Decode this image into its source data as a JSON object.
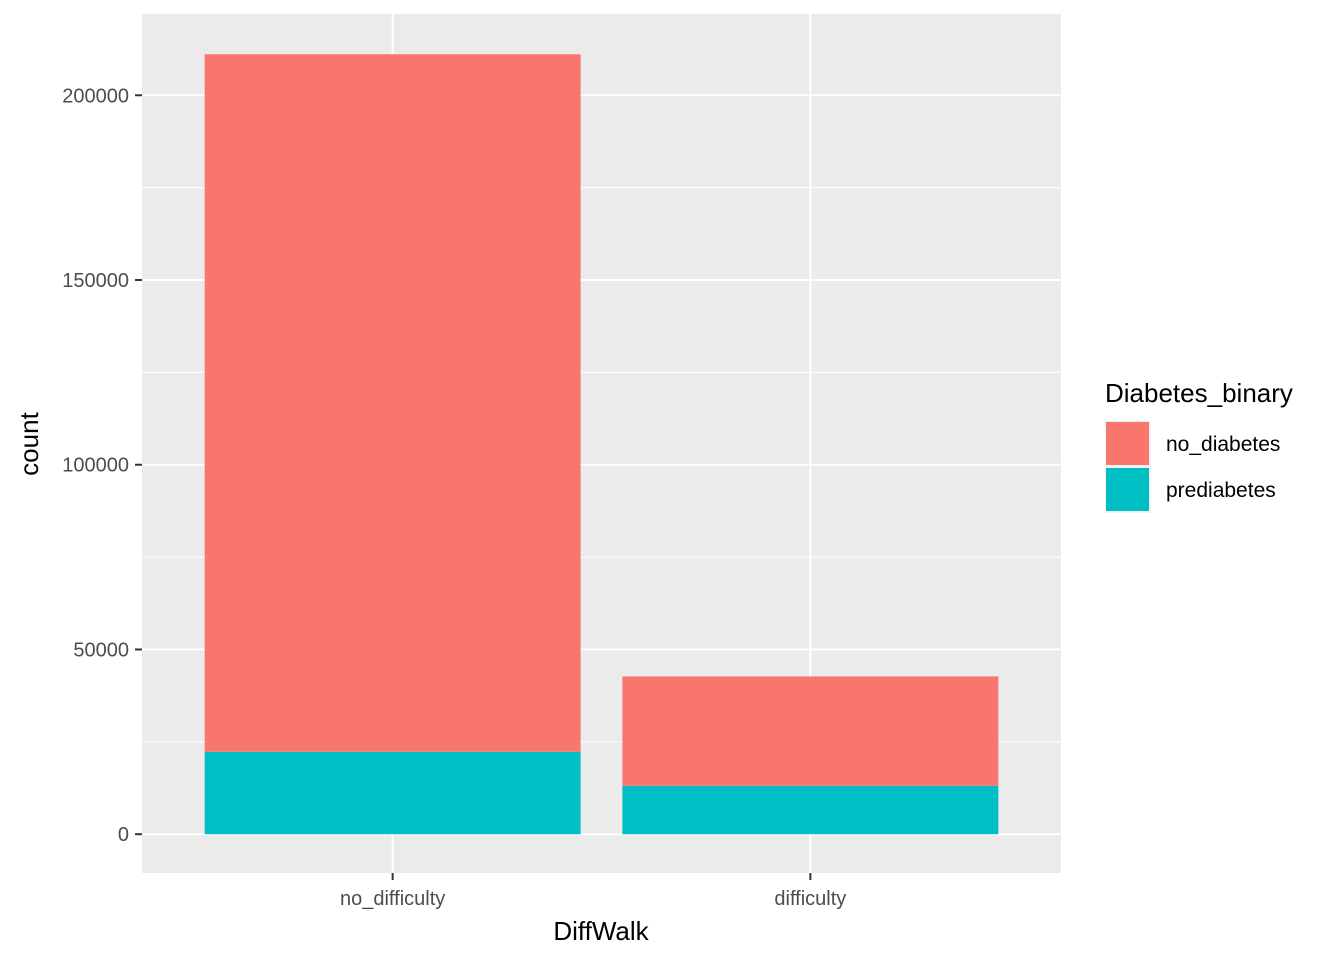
{
  "chart_data": {
    "type": "bar",
    "stacked": true,
    "categories": [
      "no_difficulty",
      "difficulty"
    ],
    "series": [
      {
        "name": "no_diabetes",
        "color": "#F8766D",
        "values": [
          188800,
          29600
        ]
      },
      {
        "name": "prediabetes",
        "color": "#00BFC4",
        "values": [
          22300,
          13100
        ]
      }
    ],
    "xlabel": "DiffWalk",
    "ylabel": "count",
    "ylim": [
      -10500,
      222000
    ],
    "yticks": [
      0,
      50000,
      100000,
      150000,
      200000
    ],
    "ytick_labels": [
      "0",
      "50000",
      "100000",
      "150000",
      "200000"
    ],
    "legend": {
      "title": "Diabetes_binary",
      "position": "right",
      "items": [
        "no_diabetes",
        "prediabetes"
      ]
    },
    "grid": true,
    "panel_background": "#EBEBEB",
    "gridline_color": "#FFFFFF"
  }
}
